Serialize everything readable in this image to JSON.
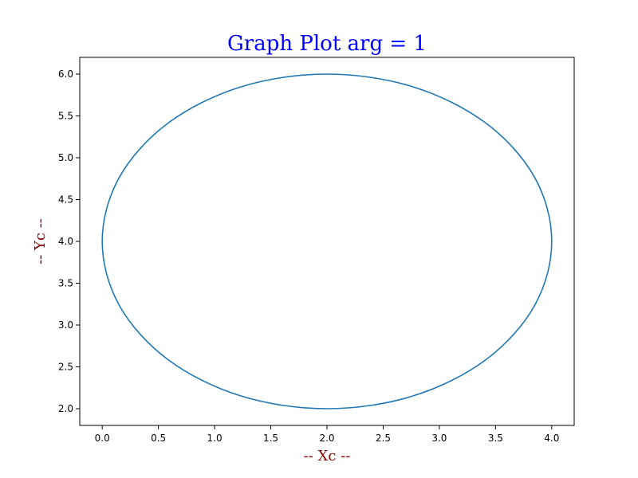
{
  "chart_data": {
    "type": "line",
    "title": "Graph Plot arg = 1",
    "xlabel": "-- Xc --",
    "ylabel": "-- Yc --",
    "xlim": [
      -0.2,
      4.2
    ],
    "ylim": [
      1.8,
      6.2
    ],
    "x_ticks": [
      "0.0",
      "0.5",
      "1.0",
      "1.5",
      "2.0",
      "2.5",
      "3.0",
      "3.5",
      "4.0"
    ],
    "y_ticks": [
      "2.0",
      "2.5",
      "3.0",
      "3.5",
      "4.0",
      "4.5",
      "5.0",
      "5.5",
      "6.0"
    ],
    "grid": false,
    "colors": {
      "title": "#0000ff",
      "axis_label": "#8b0000",
      "line": "#1f77b4"
    },
    "series": [
      {
        "x": [
          4.0,
          3.848,
          3.414,
          2.765,
          2.0,
          1.235,
          0.586,
          0.152,
          0.0,
          0.152,
          0.586,
          1.235,
          2.0,
          2.765,
          3.414,
          3.848,
          4.0
        ],
        "y": [
          4.0,
          4.765,
          5.414,
          5.848,
          6.0,
          5.848,
          5.414,
          4.765,
          4.0,
          3.235,
          2.586,
          2.152,
          2.0,
          2.152,
          2.586,
          3.235,
          4.0
        ]
      }
    ]
  }
}
